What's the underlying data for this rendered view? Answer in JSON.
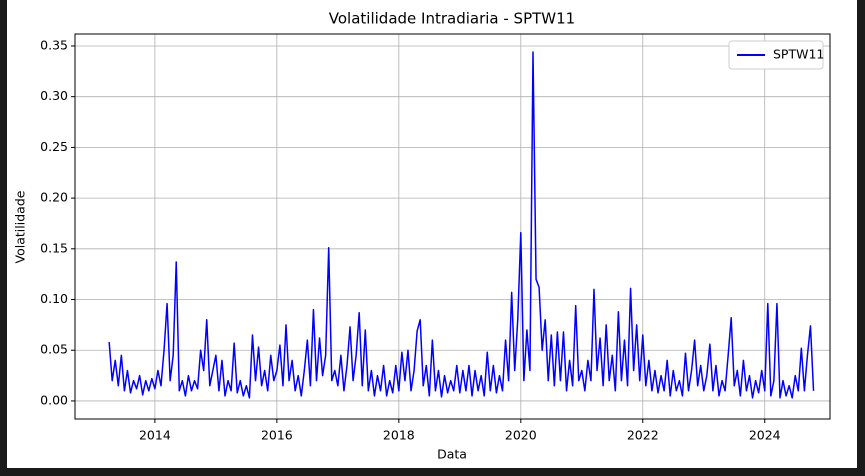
{
  "chart_data": {
    "type": "line",
    "title": "Volatilidade Intradiaria - SPTW11",
    "xlabel": "Data",
    "ylabel": "Volatilidade",
    "x": [
      2013.25,
      2013.3,
      2013.35,
      2013.4,
      2013.45,
      2013.5,
      2013.55,
      2013.6,
      2013.65,
      2013.7,
      2013.75,
      2013.8,
      2013.85,
      2013.9,
      2013.95,
      2014,
      2014.05,
      2014.1,
      2014.15,
      2014.2,
      2014.25,
      2014.3,
      2014.35,
      2014.4,
      2014.45,
      2014.5,
      2014.55,
      2014.6,
      2014.65,
      2014.7,
      2014.75,
      2014.8,
      2014.85,
      2014.9,
      2014.95,
      2015,
      2015.05,
      2015.1,
      2015.15,
      2015.2,
      2015.25,
      2015.3,
      2015.35,
      2015.4,
      2015.45,
      2015.5,
      2015.55,
      2015.6,
      2015.65,
      2015.7,
      2015.75,
      2015.8,
      2015.85,
      2015.9,
      2015.95,
      2016,
      2016.05,
      2016.1,
      2016.15,
      2016.2,
      2016.25,
      2016.3,
      2016.35,
      2016.4,
      2016.45,
      2016.5,
      2016.55,
      2016.6,
      2016.65,
      2016.7,
      2016.75,
      2016.8,
      2016.85,
      2016.9,
      2016.95,
      2017,
      2017.05,
      2017.1,
      2017.15,
      2017.2,
      2017.25,
      2017.3,
      2017.35,
      2017.4,
      2017.45,
      2017.5,
      2017.55,
      2017.6,
      2017.65,
      2017.7,
      2017.75,
      2017.8,
      2017.85,
      2017.9,
      2017.95,
      2018,
      2018.05,
      2018.1,
      2018.15,
      2018.2,
      2018.25,
      2018.3,
      2018.35,
      2018.4,
      2018.45,
      2018.5,
      2018.55,
      2018.6,
      2018.65,
      2018.7,
      2018.75,
      2018.8,
      2018.85,
      2018.9,
      2018.95,
      2019,
      2019.05,
      2019.1,
      2019.15,
      2019.2,
      2019.25,
      2019.3,
      2019.35,
      2019.4,
      2019.45,
      2019.5,
      2019.55,
      2019.6,
      2019.65,
      2019.7,
      2019.75,
      2019.8,
      2019.85,
      2019.9,
      2019.95,
      2020,
      2020.05,
      2020.1,
      2020.15,
      2020.2,
      2020.25,
      2020.3,
      2020.35,
      2020.4,
      2020.45,
      2020.5,
      2020.55,
      2020.6,
      2020.65,
      2020.7,
      2020.75,
      2020.8,
      2020.85,
      2020.9,
      2020.95,
      2021,
      2021.05,
      2021.1,
      2021.15,
      2021.2,
      2021.25,
      2021.3,
      2021.35,
      2021.4,
      2021.45,
      2021.5,
      2021.55,
      2021.6,
      2021.65,
      2021.7,
      2021.75,
      2021.8,
      2021.85,
      2021.9,
      2021.95,
      2022,
      2022.05,
      2022.1,
      2022.15,
      2022.2,
      2022.25,
      2022.3,
      2022.35,
      2022.4,
      2022.45,
      2022.5,
      2022.55,
      2022.6,
      2022.65,
      2022.7,
      2022.75,
      2022.8,
      2022.85,
      2022.9,
      2022.95,
      2023,
      2023.05,
      2023.1,
      2023.15,
      2023.2,
      2023.25,
      2023.3,
      2023.35,
      2023.4,
      2023.45,
      2023.5,
      2023.55,
      2023.6,
      2023.65,
      2023.7,
      2023.75,
      2023.8,
      2023.85,
      2023.9,
      2023.95,
      2024,
      2024.05,
      2024.1,
      2024.15,
      2024.2,
      2024.25,
      2024.3,
      2024.35,
      2024.4,
      2024.45,
      2024.5,
      2024.55,
      2024.6,
      2024.65,
      2024.7,
      2024.75,
      2024.8
    ],
    "series": [
      {
        "name": "SPTW11",
        "color": "#0000ff",
        "values": [
          0.058,
          0.02,
          0.04,
          0.015,
          0.045,
          0.01,
          0.03,
          0.008,
          0.02,
          0.012,
          0.025,
          0.006,
          0.02,
          0.01,
          0.022,
          0.012,
          0.03,
          0.015,
          0.05,
          0.096,
          0.02,
          0.045,
          0.137,
          0.01,
          0.02,
          0.005,
          0.025,
          0.01,
          0.02,
          0.012,
          0.05,
          0.03,
          0.08,
          0.015,
          0.03,
          0.045,
          0.01,
          0.04,
          0.005,
          0.02,
          0.01,
          0.057,
          0.008,
          0.02,
          0.005,
          0.015,
          0.003,
          0.065,
          0.02,
          0.053,
          0.015,
          0.03,
          0.01,
          0.045,
          0.02,
          0.03,
          0.055,
          0.015,
          0.075,
          0.02,
          0.04,
          0.01,
          0.025,
          0.005,
          0.03,
          0.06,
          0.015,
          0.09,
          0.02,
          0.062,
          0.025,
          0.045,
          0.151,
          0.02,
          0.03,
          0.015,
          0.045,
          0.01,
          0.035,
          0.073,
          0.02,
          0.045,
          0.087,
          0.015,
          0.07,
          0.01,
          0.03,
          0.005,
          0.025,
          0.01,
          0.035,
          0.005,
          0.02,
          0.008,
          0.035,
          0.01,
          0.048,
          0.02,
          0.05,
          0.01,
          0.03,
          0.069,
          0.08,
          0.015,
          0.035,
          0.005,
          0.06,
          0.01,
          0.03,
          0.004,
          0.025,
          0.008,
          0.02,
          0.01,
          0.035,
          0.008,
          0.03,
          0.01,
          0.035,
          0.005,
          0.03,
          0.01,
          0.025,
          0.005,
          0.048,
          0.01,
          0.035,
          0.008,
          0.025,
          0.01,
          0.06,
          0.02,
          0.107,
          0.03,
          0.08,
          0.166,
          0.02,
          0.07,
          0.03,
          0.344,
          0.12,
          0.112,
          0.05,
          0.08,
          0.02,
          0.065,
          0.015,
          0.068,
          0.02,
          0.068,
          0.01,
          0.04,
          0.015,
          0.094,
          0.02,
          0.03,
          0.01,
          0.04,
          0.02,
          0.11,
          0.03,
          0.062,
          0.015,
          0.075,
          0.02,
          0.045,
          0.01,
          0.088,
          0.02,
          0.06,
          0.015,
          0.111,
          0.03,
          0.075,
          0.02,
          0.065,
          0.015,
          0.04,
          0.01,
          0.03,
          0.008,
          0.025,
          0.01,
          0.04,
          0.005,
          0.03,
          0.01,
          0.02,
          0.005,
          0.047,
          0.01,
          0.03,
          0.06,
          0.015,
          0.035,
          0.01,
          0.025,
          0.056,
          0.01,
          0.035,
          0.005,
          0.02,
          0.01,
          0.045,
          0.082,
          0.015,
          0.03,
          0.005,
          0.04,
          0.01,
          0.025,
          0.003,
          0.02,
          0.008,
          0.03,
          0.01,
          0.096,
          0.005,
          0.02,
          0.096,
          0.003,
          0.02,
          0.005,
          0.015,
          0.003,
          0.025,
          0.01,
          0.052,
          0.01,
          0.045,
          0.074,
          0.01
        ]
      }
    ],
    "xlim": [
      2012.69,
      2025.07
    ],
    "xticks": [
      2014,
      2016,
      2018,
      2020,
      2022,
      2024
    ],
    "ylim": [
      -0.0178,
      0.3618
    ],
    "yticks": [
      {
        "value": 0,
        "label": "0.00"
      },
      0.05,
      {
        "value": 0.1,
        "label": "0.10"
      },
      0.15,
      {
        "value": 0.2,
        "label": "0.20"
      },
      0.25,
      {
        "value": 0.3,
        "label": "0.30"
      },
      0.35
    ],
    "grid": true,
    "legend": "upper right"
  }
}
